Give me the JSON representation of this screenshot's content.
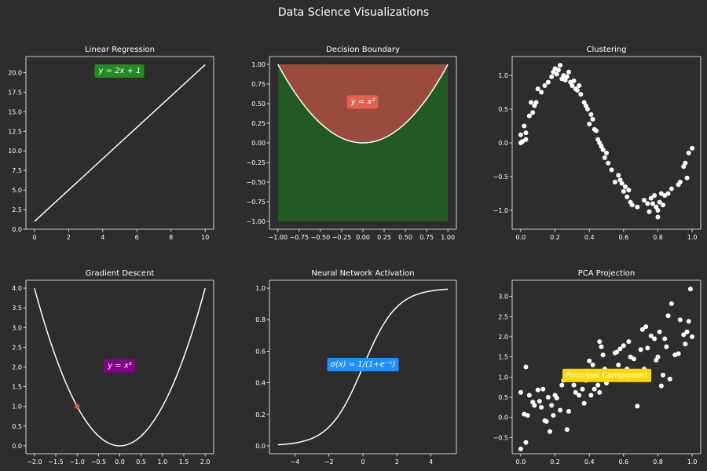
{
  "figure": {
    "title": "Data Science Visualizations",
    "background": "#2d2d2d",
    "axis_color": "#ffffff"
  },
  "chart_data": [
    {
      "type": "line",
      "title": "Linear Regression",
      "xlabel": "",
      "ylabel": "",
      "xlim": [
        -0.5,
        10.5
      ],
      "ylim": [
        0,
        22.05
      ],
      "xticks": [
        0,
        2,
        4,
        6,
        8,
        10
      ],
      "xtick_labels": [
        "0",
        "2",
        "4",
        "6",
        "8",
        "10"
      ],
      "yticks": [
        0,
        2.5,
        5,
        7.5,
        10,
        12.5,
        15,
        17.5,
        20
      ],
      "ytick_labels": [
        "0.0",
        "2.5",
        "5.0",
        "7.5",
        "10.0",
        "12.5",
        "15.0",
        "17.5",
        "20.0"
      ],
      "x": [
        0,
        10
      ],
      "y": [
        1,
        21
      ],
      "line_color": "#ffffff",
      "annotation": {
        "text": "y = 2x + 1",
        "x": 5,
        "y": 20.3,
        "color": "#228b22"
      },
      "grid": false
    },
    {
      "type": "area",
      "title": "Decision Boundary",
      "xlabel": "",
      "ylabel": "",
      "xlim": [
        -1.1,
        1.1
      ],
      "ylim": [
        -1.1,
        1.1
      ],
      "xticks": [
        -1,
        -0.75,
        -0.5,
        -0.25,
        0,
        0.25,
        0.5,
        0.75,
        1
      ],
      "xtick_labels": [
        "−1.00",
        "−0.75",
        "−0.50",
        "−0.25",
        "0.00",
        "0.25",
        "0.50",
        "0.75",
        "1.00"
      ],
      "yticks": [
        -1,
        -0.75,
        -0.5,
        -0.25,
        0,
        0.25,
        0.5,
        0.75,
        1
      ],
      "ytick_labels": [
        "−1.00",
        "−0.75",
        "−0.50",
        "−0.25",
        "0.00",
        "0.25",
        "0.50",
        "0.75",
        "1.00"
      ],
      "curve": "y = x^2",
      "x_range": [
        -1,
        1
      ],
      "regions": [
        {
          "name": "above curve",
          "from": "curve",
          "to": 1,
          "color": "#9b4a3e"
        },
        {
          "name": "below curve",
          "from": -1,
          "to": "curve",
          "color": "#235a23"
        }
      ],
      "line_color": "#ffffff",
      "annotation": {
        "text": "y = x²",
        "x": 0,
        "y": 0.53,
        "color": "#e3624e"
      },
      "grid": false
    },
    {
      "type": "scatter",
      "title": "Clustering",
      "xlabel": "",
      "ylabel": "",
      "xlim": [
        -0.05,
        1.05
      ],
      "ylim": [
        -1.28,
        1.28
      ],
      "xticks": [
        0,
        0.2,
        0.4,
        0.6,
        0.8,
        1
      ],
      "xtick_labels": [
        "0.0",
        "0.2",
        "0.4",
        "0.6",
        "0.8",
        "1.0"
      ],
      "yticks": [
        -1,
        -0.5,
        0,
        0.5,
        1
      ],
      "ytick_labels": [
        "−1.0",
        "−0.5",
        "0.0",
        "0.5",
        "1.0"
      ],
      "points": [
        [
          0.0,
          0.0
        ],
        [
          0.0,
          0.12
        ],
        [
          0.01,
          0.02
        ],
        [
          0.02,
          0.25
        ],
        [
          0.03,
          0.05
        ],
        [
          0.03,
          0.15
        ],
        [
          0.05,
          0.4
        ],
        [
          0.06,
          0.6
        ],
        [
          0.07,
          0.45
        ],
        [
          0.08,
          0.55
        ],
        [
          0.09,
          0.6
        ],
        [
          0.1,
          0.8
        ],
        [
          0.12,
          0.75
        ],
        [
          0.14,
          0.85
        ],
        [
          0.16,
          0.9
        ],
        [
          0.18,
          0.98
        ],
        [
          0.19,
          1.05
        ],
        [
          0.2,
          1.1
        ],
        [
          0.21,
          1.02
        ],
        [
          0.22,
          1.08
        ],
        [
          0.23,
          1.15
        ],
        [
          0.24,
          0.95
        ],
        [
          0.25,
          1.0
        ],
        [
          0.26,
          0.93
        ],
        [
          0.27,
          0.98
        ],
        [
          0.28,
          1.05
        ],
        [
          0.29,
          0.9
        ],
        [
          0.3,
          0.85
        ],
        [
          0.31,
          0.92
        ],
        [
          0.32,
          0.8
        ],
        [
          0.33,
          0.78
        ],
        [
          0.34,
          0.85
        ],
        [
          0.35,
          0.72
        ],
        [
          0.37,
          0.6
        ],
        [
          0.38,
          0.55
        ],
        [
          0.39,
          0.5
        ],
        [
          0.4,
          0.28
        ],
        [
          0.41,
          0.42
        ],
        [
          0.42,
          0.35
        ],
        [
          0.43,
          0.2
        ],
        [
          0.44,
          0.18
        ],
        [
          0.45,
          0.05
        ],
        [
          0.46,
          0.0
        ],
        [
          0.47,
          -0.05
        ],
        [
          0.48,
          -0.1
        ],
        [
          0.49,
          -0.22
        ],
        [
          0.5,
          -0.15
        ],
        [
          0.51,
          -0.3
        ],
        [
          0.53,
          -0.4
        ],
        [
          0.55,
          -0.58
        ],
        [
          0.57,
          -0.48
        ],
        [
          0.58,
          -0.55
        ],
        [
          0.59,
          -0.6
        ],
        [
          0.6,
          -0.72
        ],
        [
          0.61,
          -0.65
        ],
        [
          0.62,
          -0.8
        ],
        [
          0.63,
          -0.7
        ],
        [
          0.64,
          -0.88
        ],
        [
          0.65,
          -0.92
        ],
        [
          0.68,
          -0.95
        ],
        [
          0.72,
          -0.85
        ],
        [
          0.74,
          -0.9
        ],
        [
          0.75,
          -1.02
        ],
        [
          0.76,
          -0.82
        ],
        [
          0.77,
          -0.9
        ],
        [
          0.78,
          -0.78
        ],
        [
          0.79,
          -0.95
        ],
        [
          0.8,
          -1.1
        ],
        [
          0.8,
          -1.0
        ],
        [
          0.81,
          -0.88
        ],
        [
          0.82,
          -0.75
        ],
        [
          0.83,
          -0.92
        ],
        [
          0.84,
          -0.78
        ],
        [
          0.86,
          -0.75
        ],
        [
          0.88,
          -0.68
        ],
        [
          0.92,
          -0.62
        ],
        [
          0.93,
          -0.58
        ],
        [
          0.95,
          -0.35
        ],
        [
          0.96,
          -0.3
        ],
        [
          0.97,
          -0.52
        ],
        [
          0.98,
          -0.15
        ],
        [
          1.0,
          -0.08
        ]
      ],
      "point_color": "#ffffff",
      "grid": false
    },
    {
      "type": "line",
      "title": "Gradient Descent",
      "xlabel": "",
      "ylabel": "",
      "xlim": [
        -2.2,
        2.2
      ],
      "ylim": [
        -0.2,
        4.2
      ],
      "xticks": [
        -2,
        -1.5,
        -1,
        -0.5,
        0,
        0.5,
        1,
        1.5,
        2
      ],
      "xtick_labels": [
        "−2.0",
        "−1.5",
        "−1.0",
        "−0.5",
        "0.0",
        "0.5",
        "1.0",
        "1.5",
        "2.0"
      ],
      "yticks": [
        0,
        0.5,
        1,
        1.5,
        2,
        2.5,
        3,
        3.5,
        4
      ],
      "ytick_labels": [
        "0.0",
        "0.5",
        "1.0",
        "1.5",
        "2.0",
        "2.5",
        "3.0",
        "3.5",
        "4.0"
      ],
      "curve": "y = x^2",
      "x_range": [
        -2,
        2
      ],
      "line_color": "#ffffff",
      "marker": {
        "x": -1,
        "y": 1,
        "color": "#e05555"
      },
      "annotation": {
        "text": "y = x²",
        "x": 0,
        "y": 2.05,
        "color": "#8b008b"
      },
      "grid": false
    },
    {
      "type": "line",
      "title": "Neural Network Activation",
      "xlabel": "",
      "ylabel": "",
      "xlim": [
        -5.5,
        5.5
      ],
      "ylim": [
        -0.05,
        1.05
      ],
      "xticks": [
        -4,
        -2,
        0,
        2,
        4
      ],
      "xtick_labels": [
        "−4",
        "−2",
        "0",
        "2",
        "4"
      ],
      "yticks": [
        0,
        0.2,
        0.4,
        0.6,
        0.8,
        1
      ],
      "ytick_labels": [
        "0.0",
        "0.2",
        "0.4",
        "0.6",
        "0.8",
        "1.0"
      ],
      "curve": "sigmoid",
      "x_range": [
        -5,
        5
      ],
      "line_color": "#ffffff",
      "annotation": {
        "text": "σ(x) = 1/(1+e⁻ˣ)",
        "x": 0,
        "y": 0.52,
        "color": "#1e90ff"
      },
      "grid": false
    },
    {
      "type": "scatter",
      "title": "PCA Projection",
      "xlabel": "",
      "ylabel": "",
      "xlim": [
        -0.05,
        1.05
      ],
      "ylim": [
        -0.9,
        3.4
      ],
      "xticks": [
        0,
        0.2,
        0.4,
        0.6,
        0.8,
        1
      ],
      "xtick_labels": [
        "0.0",
        "0.2",
        "0.4",
        "0.6",
        "0.8",
        "1.0"
      ],
      "yticks": [
        -0.5,
        0,
        0.5,
        1,
        1.5,
        2,
        2.5,
        3
      ],
      "ytick_labels": [
        "−0.5",
        "0.0",
        "0.5",
        "1.0",
        "1.5",
        "2.0",
        "2.5",
        "3.0"
      ],
      "points": [
        [
          0.0,
          -0.78
        ],
        [
          0.0,
          0.62
        ],
        [
          0.02,
          0.08
        ],
        [
          0.03,
          1.25
        ],
        [
          0.03,
          -0.62
        ],
        [
          0.04,
          0.05
        ],
        [
          0.05,
          0.55
        ],
        [
          0.07,
          0.38
        ],
        [
          0.08,
          0.3
        ],
        [
          0.1,
          0.68
        ],
        [
          0.11,
          0.4
        ],
        [
          0.12,
          0.25
        ],
        [
          0.13,
          0.7
        ],
        [
          0.14,
          -0.08
        ],
        [
          0.15,
          -0.1
        ],
        [
          0.16,
          0.5
        ],
        [
          0.17,
          -0.35
        ],
        [
          0.18,
          0.3
        ],
        [
          0.19,
          0.05
        ],
        [
          0.2,
          0.55
        ],
        [
          0.21,
          0.48
        ],
        [
          0.23,
          0.18
        ],
        [
          0.24,
          0.8
        ],
        [
          0.25,
          0.92
        ],
        [
          0.27,
          -0.3
        ],
        [
          0.28,
          0.15
        ],
        [
          0.29,
          1.08
        ],
        [
          0.3,
          1.02
        ],
        [
          0.31,
          0.8
        ],
        [
          0.32,
          0.62
        ],
        [
          0.33,
          0.98
        ],
        [
          0.34,
          0.55
        ],
        [
          0.35,
          1.1
        ],
        [
          0.36,
          0.7
        ],
        [
          0.37,
          0.35
        ],
        [
          0.38,
          0.92
        ],
        [
          0.39,
          1.0
        ],
        [
          0.4,
          1.4
        ],
        [
          0.41,
          0.55
        ],
        [
          0.42,
          1.3
        ],
        [
          0.43,
          0.7
        ],
        [
          0.44,
          1.05
        ],
        [
          0.45,
          0.8
        ],
        [
          0.46,
          1.88
        ],
        [
          0.46,
          0.62
        ],
        [
          0.47,
          1.75
        ],
        [
          0.48,
          1.55
        ],
        [
          0.49,
          1.2
        ],
        [
          0.5,
          0.85
        ],
        [
          0.51,
          1.1
        ],
        [
          0.52,
          0.95
        ],
        [
          0.54,
          1.05
        ],
        [
          0.55,
          1.6
        ],
        [
          0.56,
          1.62
        ],
        [
          0.57,
          1.3
        ],
        [
          0.58,
          1.7
        ],
        [
          0.59,
          1.15
        ],
        [
          0.6,
          1.78
        ],
        [
          0.62,
          1.2
        ],
        [
          0.63,
          1.88
        ],
        [
          0.64,
          1.5
        ],
        [
          0.66,
          1.45
        ],
        [
          0.67,
          1.1
        ],
        [
          0.68,
          0.28
        ],
        [
          0.7,
          1.68
        ],
        [
          0.71,
          2.18
        ],
        [
          0.72,
          1.2
        ],
        [
          0.73,
          2.25
        ],
        [
          0.74,
          1.72
        ],
        [
          0.76,
          2.02
        ],
        [
          0.78,
          1.95
        ],
        [
          0.79,
          1.42
        ],
        [
          0.8,
          1.5
        ],
        [
          0.81,
          2.12
        ],
        [
          0.82,
          0.78
        ],
        [
          0.83,
          1.05
        ],
        [
          0.84,
          1.95
        ],
        [
          0.85,
          1.75
        ],
        [
          0.86,
          2.52
        ],
        [
          0.87,
          0.95
        ],
        [
          0.88,
          2.82
        ],
        [
          0.9,
          1.55
        ],
        [
          0.92,
          1.58
        ],
        [
          0.93,
          2.42
        ],
        [
          0.95,
          2.05
        ],
        [
          0.96,
          1.82
        ],
        [
          0.97,
          2.12
        ],
        [
          0.98,
          2.38
        ],
        [
          0.99,
          3.18
        ],
        [
          1.0,
          2.0
        ]
      ],
      "point_color": "#ffffff",
      "annotation": {
        "text": "Principal Component",
        "x": 0.5,
        "y": 1.06,
        "color": "#ffd700",
        "text_color": "#ffffff"
      },
      "grid": false
    }
  ]
}
